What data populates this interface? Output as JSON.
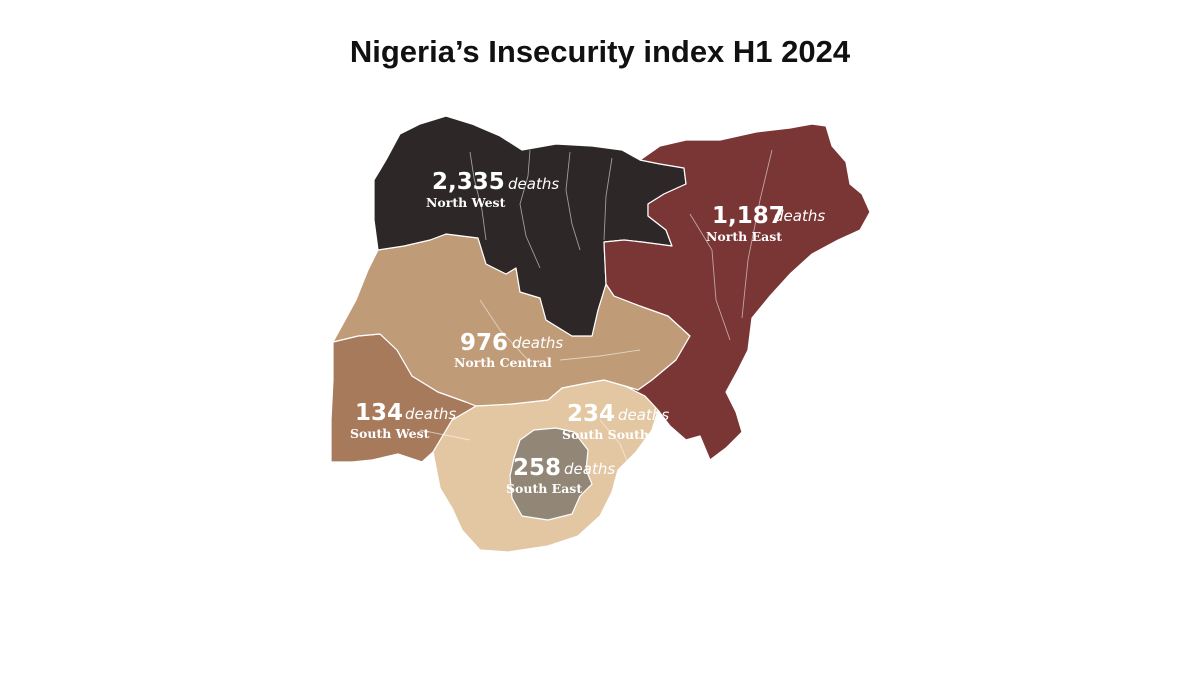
{
  "title": "Nigeria’s Insecurity index H1 2024",
  "unit_label": "deaths",
  "regions": [
    {
      "name": "North West",
      "deaths": "2,335",
      "color": "#2d2727"
    },
    {
      "name": "North East",
      "deaths": "1,187",
      "color": "#7a3535"
    },
    {
      "name": "North Central",
      "deaths": "976",
      "color": "#c09b77"
    },
    {
      "name": "South West",
      "deaths": "134",
      "color": "#a87a5c"
    },
    {
      "name": "South South",
      "deaths": "234",
      "color": "#e3c7a3"
    },
    {
      "name": "South East",
      "deaths": "258",
      "color": "#928677"
    }
  ]
}
